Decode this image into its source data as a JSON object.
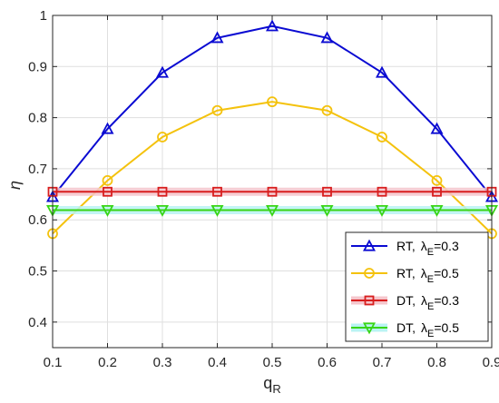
{
  "chart_data": {
    "type": "line",
    "title": "",
    "xlabel": "q",
    "xlabel_sub": "R",
    "ylabel": "η",
    "xlim": [
      0.1,
      0.9
    ],
    "ylim": [
      0.35,
      1.0
    ],
    "xticks": [
      0.1,
      0.2,
      0.3,
      0.4,
      0.5,
      0.6,
      0.7,
      0.8,
      0.9
    ],
    "xtick_labels": [
      "0.1",
      "0.2",
      "0.3",
      "0.4",
      "0.5",
      "0.6",
      "0.7",
      "0.8",
      "0.9"
    ],
    "yticks": [
      0.4,
      0.5,
      0.6,
      0.7,
      0.8,
      0.9,
      1.0
    ],
    "ytick_labels": [
      "0.4",
      "0.5",
      "0.6",
      "0.7",
      "0.8",
      "0.9",
      "1"
    ],
    "grid": true,
    "legend_position": "bottom-right",
    "x": [
      0.1,
      0.2,
      0.3,
      0.4,
      0.5,
      0.6,
      0.7,
      0.8,
      0.9
    ],
    "series": [
      {
        "name": "RT",
        "name_prefix": "RT,",
        "lambda_symbol": "λ",
        "lambda_sub": "E",
        "lambda_value": "=0.3",
        "marker": "triangle-up",
        "color": "#0a0ad2",
        "glow": "",
        "values": [
          0.645,
          0.778,
          0.888,
          0.956,
          0.979,
          0.956,
          0.888,
          0.778,
          0.645
        ]
      },
      {
        "name": "RT",
        "name_prefix": "RT,",
        "lambda_symbol": "λ",
        "lambda_sub": "E",
        "lambda_value": "=0.5",
        "marker": "circle",
        "color": "#f4c20d",
        "glow": "",
        "values": [
          0.573,
          0.677,
          0.762,
          0.814,
          0.831,
          0.814,
          0.762,
          0.677,
          0.573
        ]
      },
      {
        "name": "DT",
        "name_prefix": "DT,",
        "lambda_symbol": "λ",
        "lambda_sub": "E",
        "lambda_value": "=0.3",
        "marker": "square",
        "color": "#d81e1e",
        "glow": "#f5c6cc",
        "values": [
          0.655,
          0.655,
          0.655,
          0.655,
          0.655,
          0.655,
          0.655,
          0.655,
          0.655
        ]
      },
      {
        "name": "DT",
        "name_prefix": "DT,",
        "lambda_symbol": "λ",
        "lambda_sub": "E",
        "lambda_value": "=0.5",
        "marker": "triangle-down",
        "color": "#38d515",
        "glow": "#b9f3f3",
        "values": [
          0.619,
          0.619,
          0.619,
          0.619,
          0.619,
          0.619,
          0.619,
          0.619,
          0.619
        ]
      }
    ]
  }
}
